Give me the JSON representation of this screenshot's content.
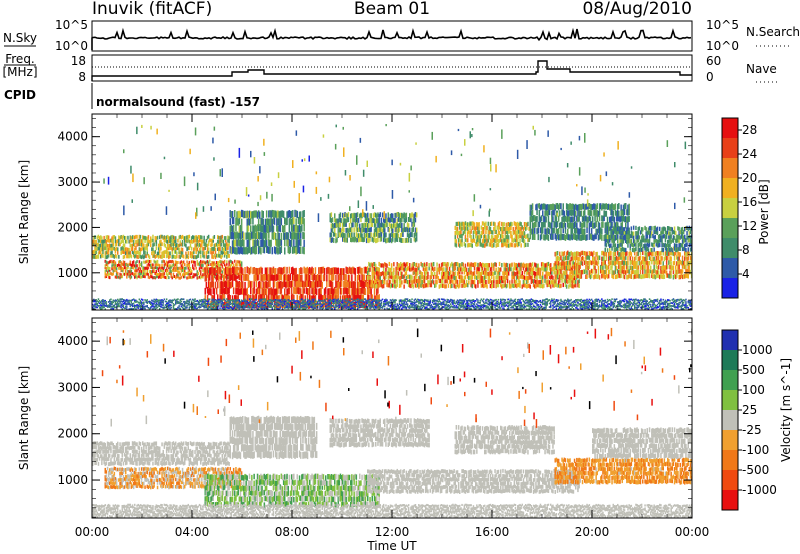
{
  "header": {
    "station": "Inuvik (fitACF)",
    "beam": "Beam 01",
    "date": "08/Aug/2010"
  },
  "summary": {
    "nsky_label": "N.Sky",
    "nsky_ticks": [
      "10^5",
      "10^0"
    ],
    "nsearch_label": "N.Search",
    "nsearch_ticks": [
      "10^5",
      "10^0"
    ],
    "freq_label": "Freq.",
    "freq_unit": "[MHz]",
    "freq_ticks": [
      "18",
      "8"
    ],
    "nave_label": "Nave",
    "nave_ticks": [
      "60",
      "0"
    ],
    "cpid_label": "CPID",
    "cpid_text": "normalsound (fast) -157"
  },
  "colors": {
    "power": [
      "#1a22e6",
      "#2e5aa8",
      "#3f8c6a",
      "#5aa05a",
      "#c8d040",
      "#f0b020",
      "#f08020",
      "#e84018",
      "#e61010"
    ],
    "velocity": [
      "#2030b0",
      "#1e7a58",
      "#40a050",
      "#80c040",
      "#c0c0b8",
      "#f0a030",
      "#f07818",
      "#f04a10",
      "#e81010"
    ]
  },
  "chart_data": [
    {
      "type": "heatmap",
      "title": "Power",
      "ylabel": "Slant Range [km]",
      "xlabel": "",
      "x_ticks": [
        "00:00",
        "04:00",
        "08:00",
        "12:00",
        "16:00",
        "20:00",
        "00:00"
      ],
      "y_ticks": [
        "1000",
        "2000",
        "3000",
        "4000"
      ],
      "ylim": [
        180,
        4500
      ],
      "xlim_hours": [
        0,
        24
      ],
      "colorbar": {
        "label": "Power [dB]",
        "ticks": [
          "4",
          "8",
          "12",
          "16",
          "20",
          "24",
          "28"
        ],
        "range": [
          0,
          30
        ]
      },
      "bands": [
        {
          "from_h": 0.0,
          "to_h": 5.5,
          "r_lo": 1300,
          "r_hi": 1800,
          "v_lo": 8,
          "v_hi": 22
        },
        {
          "from_h": 0.5,
          "to_h": 6.0,
          "r_lo": 850,
          "r_hi": 1250,
          "v_lo": 10,
          "v_hi": 30
        },
        {
          "from_h": 4.5,
          "to_h": 11.5,
          "r_lo": 200,
          "r_hi": 1100,
          "v_lo": 20,
          "v_hi": 30
        },
        {
          "from_h": 5.5,
          "to_h": 8.5,
          "r_lo": 1400,
          "r_hi": 2350,
          "v_lo": 4,
          "v_hi": 14
        },
        {
          "from_h": 9.5,
          "to_h": 13.0,
          "r_lo": 1650,
          "r_hi": 2300,
          "v_lo": 4,
          "v_hi": 16
        },
        {
          "from_h": 11.0,
          "to_h": 19.5,
          "r_lo": 650,
          "r_hi": 1200,
          "v_lo": 12,
          "v_hi": 28
        },
        {
          "from_h": 14.5,
          "to_h": 17.5,
          "r_lo": 1550,
          "r_hi": 2100,
          "v_lo": 10,
          "v_hi": 22
        },
        {
          "from_h": 17.5,
          "to_h": 21.5,
          "r_lo": 1700,
          "r_hi": 2500,
          "v_lo": 4,
          "v_hi": 12
        },
        {
          "from_h": 18.5,
          "to_h": 24.0,
          "r_lo": 850,
          "r_hi": 1450,
          "v_lo": 12,
          "v_hi": 26
        },
        {
          "from_h": 20.5,
          "to_h": 24.0,
          "r_lo": 1450,
          "r_hi": 2000,
          "v_lo": 4,
          "v_hi": 14
        },
        {
          "from_h": 0.0,
          "to_h": 24.0,
          "r_lo": 180,
          "r_hi": 400,
          "v_lo": 2,
          "v_hi": 10
        }
      ]
    },
    {
      "type": "heatmap",
      "title": "Velocity",
      "ylabel": "Slant Range [km]",
      "xlabel": "Time UT",
      "x_ticks": [
        "00:00",
        "04:00",
        "08:00",
        "12:00",
        "16:00",
        "20:00",
        "00:00"
      ],
      "y_ticks": [
        "1000",
        "2000",
        "3000",
        "4000"
      ],
      "ylim": [
        180,
        4500
      ],
      "xlim_hours": [
        0,
        24
      ],
      "colorbar": {
        "label": "Velocity [m s^-1]",
        "ticks": [
          "1000",
          "500",
          "100",
          "25",
          "-25",
          "-100",
          "-500",
          "-1000"
        ],
        "range": [
          -1000,
          1000
        ]
      },
      "bands": [
        {
          "from_h": 0.0,
          "to_h": 5.5,
          "r_lo": 1300,
          "r_hi": 1800,
          "v_lo": -25,
          "v_hi": 25
        },
        {
          "from_h": 0.5,
          "to_h": 6.0,
          "r_lo": 800,
          "r_hi": 1250,
          "v_lo": -500,
          "v_hi": 100
        },
        {
          "from_h": 4.5,
          "to_h": 11.5,
          "r_lo": 400,
          "r_hi": 1100,
          "v_lo": -100,
          "v_hi": 500
        },
        {
          "from_h": 5.5,
          "to_h": 9.0,
          "r_lo": 1450,
          "r_hi": 2350,
          "v_lo": -25,
          "v_hi": 25
        },
        {
          "from_h": 9.5,
          "to_h": 13.5,
          "r_lo": 1700,
          "r_hi": 2300,
          "v_lo": -25,
          "v_hi": 25
        },
        {
          "from_h": 11.0,
          "to_h": 19.5,
          "r_lo": 700,
          "r_hi": 1200,
          "v_lo": -25,
          "v_hi": 25
        },
        {
          "from_h": 14.5,
          "to_h": 18.5,
          "r_lo": 1550,
          "r_hi": 2150,
          "v_lo": -25,
          "v_hi": 25
        },
        {
          "from_h": 18.5,
          "to_h": 24.0,
          "r_lo": 900,
          "r_hi": 1450,
          "v_lo": -500,
          "v_hi": -100
        },
        {
          "from_h": 20.0,
          "to_h": 24.0,
          "r_lo": 1450,
          "r_hi": 2100,
          "v_lo": -25,
          "v_hi": 25
        },
        {
          "from_h": 0.0,
          "to_h": 24.0,
          "r_lo": 180,
          "r_hi": 450,
          "v_lo": -100,
          "v_hi": 100
        }
      ]
    }
  ]
}
